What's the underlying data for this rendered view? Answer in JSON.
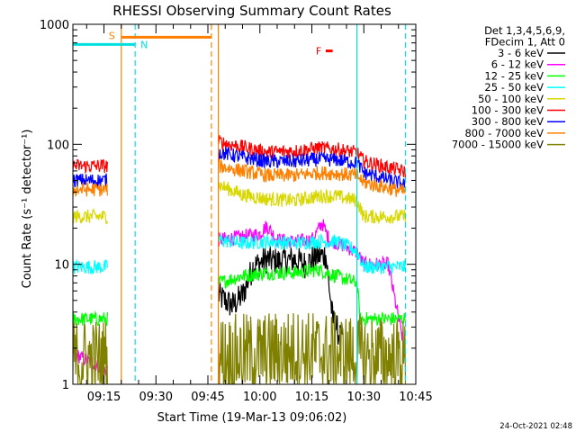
{
  "chart_data": {
    "type": "line",
    "title": "RHESSI Observing Summary Count Rates",
    "xlabel": "Start Time (19-Mar-13 09:06:02)",
    "ylabel": "Count Rate (s⁻¹ detector⁻¹)",
    "y_scale": "log",
    "ylim": [
      1,
      1000
    ],
    "xlim": [
      "09:06:02",
      "10:45:00"
    ],
    "x_tick_labels": [
      "09:15",
      "09:30",
      "09:45",
      "10:00",
      "10:15",
      "10:30",
      "10:45"
    ],
    "y_tick_labels": [
      "1",
      "10",
      "100",
      "1000"
    ],
    "legend_header": [
      "Det 1,3,4,5,6,9,",
      "FDecim 1, Att 0"
    ],
    "legend_position": "right",
    "series": [
      {
        "name": "3 - 6 keV",
        "color": "#000000",
        "points": [
          [
            "09:48",
            5.5
          ],
          [
            "09:52",
            4.5
          ],
          [
            "09:55",
            5.5
          ],
          [
            "09:58",
            9.5
          ],
          [
            "10:02",
            11
          ],
          [
            "10:05",
            10.5
          ],
          [
            "10:10",
            11
          ],
          [
            "10:13",
            10
          ],
          [
            "10:16",
            11.5
          ],
          [
            "10:19",
            12
          ],
          [
            "10:21",
            3.5
          ],
          [
            "10:24",
            2.2
          ]
        ]
      },
      {
        "name": "6 - 12 keV",
        "color": "#ff00ff",
        "points": [
          [
            "09:06",
            1.8
          ],
          [
            "09:12",
            1.5
          ],
          [
            "09:16",
            1.3
          ],
          [
            "09:48",
            16
          ],
          [
            "09:55",
            17
          ],
          [
            "10:00",
            18
          ],
          [
            "10:02",
            21
          ],
          [
            "10:05",
            16
          ],
          [
            "10:10",
            15.5
          ],
          [
            "10:15",
            16
          ],
          [
            "10:18",
            22
          ],
          [
            "10:20",
            16
          ],
          [
            "10:25",
            14
          ],
          [
            "10:28",
            12.5
          ],
          [
            "10:30",
            10
          ],
          [
            "10:37",
            10
          ],
          [
            "10:42",
            1.8
          ]
        ]
      },
      {
        "name": "12 - 25 keV",
        "color": "#00ff00",
        "points": [
          [
            "09:06",
            3.5
          ],
          [
            "09:16",
            3.5
          ],
          [
            "09:48",
            7
          ],
          [
            "09:55",
            8
          ],
          [
            "10:02",
            8.5
          ],
          [
            "10:10",
            8.5
          ],
          [
            "10:17",
            9
          ],
          [
            "10:22",
            8
          ],
          [
            "10:28",
            7
          ],
          [
            "10:29",
            3.5
          ],
          [
            "10:42",
            3.5
          ]
        ]
      },
      {
        "name": "25 - 50 keV",
        "color": "#00ffff",
        "points": [
          [
            "09:06",
            9.5
          ],
          [
            "09:16",
            9.5
          ],
          [
            "09:48",
            16
          ],
          [
            "09:55",
            15
          ],
          [
            "10:02",
            15.5
          ],
          [
            "10:10",
            15
          ],
          [
            "10:17",
            15.5
          ],
          [
            "10:22",
            15.5
          ],
          [
            "10:28",
            13
          ],
          [
            "10:30",
            9.5
          ],
          [
            "10:42",
            9.5
          ]
        ]
      },
      {
        "name": "50 - 100 keV",
        "color": "#d8d800",
        "points": [
          [
            "09:06",
            25
          ],
          [
            "09:16",
            25
          ],
          [
            "09:48",
            46
          ],
          [
            "09:55",
            38
          ],
          [
            "10:02",
            35
          ],
          [
            "10:10",
            34
          ],
          [
            "10:17",
            37
          ],
          [
            "10:22",
            37
          ],
          [
            "10:28",
            34
          ],
          [
            "10:30",
            25
          ],
          [
            "10:42",
            25
          ]
        ]
      },
      {
        "name": "100 - 300 keV",
        "color": "#ff0000",
        "points": [
          [
            "09:06",
            66
          ],
          [
            "09:16",
            66
          ],
          [
            "09:48",
            105
          ],
          [
            "09:55",
            95
          ],
          [
            "10:02",
            86
          ],
          [
            "10:10",
            88
          ],
          [
            "10:17",
            93
          ],
          [
            "10:22",
            91
          ],
          [
            "10:28",
            85
          ],
          [
            "10:30",
            72
          ],
          [
            "10:42",
            59
          ]
        ]
      },
      {
        "name": "300 - 800 keV",
        "color": "#0000ff",
        "points": [
          [
            "09:06",
            50
          ],
          [
            "09:16",
            50
          ],
          [
            "09:48",
            86
          ],
          [
            "09:55",
            78
          ],
          [
            "10:02",
            72
          ],
          [
            "10:10",
            72
          ],
          [
            "10:17",
            75
          ],
          [
            "10:22",
            74
          ],
          [
            "10:28",
            70
          ],
          [
            "10:30",
            58
          ],
          [
            "10:42",
            46
          ]
        ]
      },
      {
        "name": "800 - 7000 keV",
        "color": "#ff8000",
        "points": [
          [
            "09:06",
            42
          ],
          [
            "09:16",
            42
          ],
          [
            "09:48",
            66
          ],
          [
            "09:55",
            60
          ],
          [
            "10:02",
            55
          ],
          [
            "10:10",
            55
          ],
          [
            "10:17",
            58
          ],
          [
            "10:22",
            57
          ],
          [
            "10:28",
            55
          ],
          [
            "10:30",
            48
          ],
          [
            "10:42",
            40
          ]
        ]
      },
      {
        "name": "7000 - 15000 keV",
        "color": "#808000",
        "points": [
          [
            "09:06",
            1.6
          ],
          [
            "09:16",
            1.6
          ],
          [
            "09:48",
            1.7
          ],
          [
            "10:00",
            1.8
          ],
          [
            "10:10",
            1.9
          ],
          [
            "10:20",
            1.8
          ],
          [
            "10:30",
            1.7
          ],
          [
            "10:42",
            1.6
          ]
        ]
      }
    ],
    "annotations": [
      {
        "label": "S",
        "color": "#ff8000",
        "x_start": "09:20",
        "x_end": "09:46",
        "y": 780
      },
      {
        "label": "N",
        "color": "#00e0e0",
        "x_start": "09:06",
        "x_end": "09:24",
        "y": 680
      },
      {
        "label": "F",
        "color": "#ff0000",
        "x_start": "10:19",
        "x_end": "10:21",
        "y": 600
      }
    ],
    "gap_regions": [
      [
        "09:16",
        "09:48"
      ]
    ],
    "vertical_markers": [
      {
        "x": "09:20",
        "color": "#ff8000",
        "style": "solid"
      },
      {
        "x": "09:24",
        "color": "#00e0e0",
        "style": "dashed"
      },
      {
        "x": "09:46",
        "color": "#ff8000",
        "style": "dashed"
      },
      {
        "x": "09:48",
        "color": "#ff8000",
        "style": "solid"
      },
      {
        "x": "10:28",
        "color": "#00e0e0",
        "style": "solid"
      },
      {
        "x": "10:42",
        "color": "#00e0e0",
        "style": "dashed"
      }
    ]
  },
  "footer": {
    "timestamp": "24-Oct-2021 02:48"
  }
}
